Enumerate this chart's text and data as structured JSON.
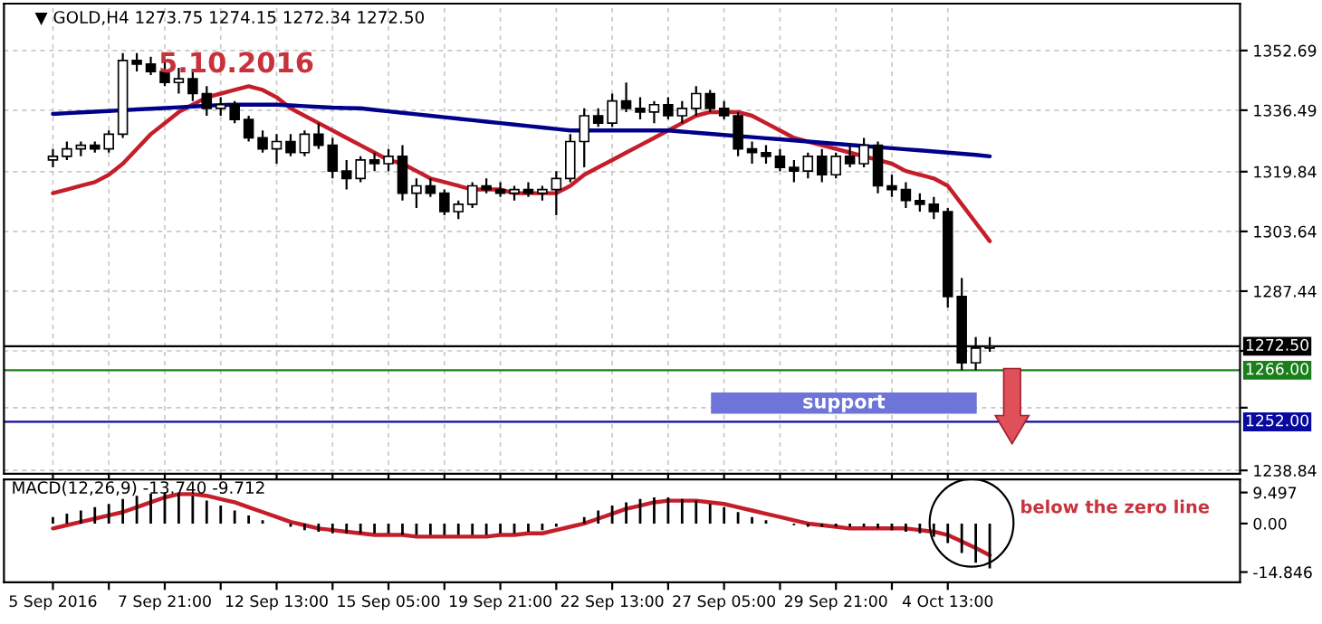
{
  "chart_data": [
    {
      "type": "candlestick",
      "title": "▼ GOLD,H4 1273.75 1274.15 1272.34 1272.50",
      "subtitle": "5.10.2016",
      "categories": [
        null,
        null,
        null,
        null,
        null,
        null,
        null,
        null,
        null,
        null,
        null,
        null,
        null,
        null,
        null,
        null,
        null,
        null,
        null,
        null,
        null,
        null,
        null,
        null,
        null,
        null,
        null,
        null,
        null,
        null,
        null,
        null,
        null,
        null,
        null,
        null,
        null,
        null,
        null,
        null,
        null,
        null,
        null,
        null,
        null,
        null,
        null,
        null,
        null,
        null,
        null,
        null,
        null,
        null,
        null,
        null,
        null,
        null,
        null,
        null,
        null,
        null,
        null,
        null,
        null,
        null,
        null,
        null
      ],
      "ohlc": [
        [
          1323,
          1326,
          1321,
          1324
        ],
        [
          1324,
          1328,
          1323,
          1326
        ],
        [
          1326,
          1328,
          1324,
          1327
        ],
        [
          1327,
          1328,
          1325,
          1326
        ],
        [
          1326,
          1331,
          1325,
          1330
        ],
        [
          1330,
          1352,
          1329,
          1350
        ],
        [
          1350,
          1352,
          1347,
          1349
        ],
        [
          1349,
          1351,
          1346,
          1347
        ],
        [
          1347,
          1350,
          1343,
          1344
        ],
        [
          1344,
          1348,
          1341,
          1345
        ],
        [
          1345,
          1347,
          1339,
          1341
        ],
        [
          1341,
          1343,
          1335,
          1337
        ],
        [
          1337,
          1340,
          1335,
          1338
        ],
        [
          1338,
          1339,
          1333,
          1334
        ],
        [
          1334,
          1335,
          1328,
          1329
        ],
        [
          1329,
          1331,
          1325,
          1326
        ],
        [
          1326,
          1330,
          1322,
          1328
        ],
        [
          1328,
          1330,
          1324,
          1325
        ],
        [
          1325,
          1331,
          1324,
          1330
        ],
        [
          1330,
          1333,
          1326,
          1327
        ],
        [
          1327,
          1329,
          1318,
          1320
        ],
        [
          1320,
          1323,
          1315,
          1318
        ],
        [
          1318,
          1324,
          1317,
          1323
        ],
        [
          1323,
          1325,
          1320,
          1322
        ],
        [
          1322,
          1326,
          1320,
          1324
        ],
        [
          1324,
          1327,
          1312,
          1314
        ],
        [
          1314,
          1318,
          1310,
          1316
        ],
        [
          1316,
          1318,
          1313,
          1314
        ],
        [
          1314,
          1315,
          1308,
          1309
        ],
        [
          1309,
          1312,
          1307,
          1311
        ],
        [
          1311,
          1317,
          1310,
          1316
        ],
        [
          1316,
          1318,
          1314,
          1315
        ],
        [
          1315,
          1317,
          1313,
          1314
        ],
        [
          1314,
          1316,
          1312,
          1315
        ],
        [
          1315,
          1317,
          1313,
          1314
        ],
        [
          1314,
          1316,
          1312,
          1315
        ],
        [
          1315,
          1320,
          1308,
          1318
        ],
        [
          1318,
          1330,
          1317,
          1328
        ],
        [
          1328,
          1337,
          1321,
          1335
        ],
        [
          1335,
          1337,
          1332,
          1333
        ],
        [
          1333,
          1341,
          1332,
          1339
        ],
        [
          1339,
          1344,
          1336,
          1337
        ],
        [
          1337,
          1340,
          1334,
          1336
        ],
        [
          1336,
          1339,
          1333,
          1338
        ],
        [
          1338,
          1340,
          1334,
          1335
        ],
        [
          1335,
          1339,
          1333,
          1337
        ],
        [
          1337,
          1343,
          1335,
          1341
        ],
        [
          1341,
          1342,
          1336,
          1337
        ],
        [
          1337,
          1339,
          1334,
          1335
        ],
        [
          1335,
          1336,
          1324,
          1326
        ],
        [
          1326,
          1328,
          1322,
          1325
        ],
        [
          1325,
          1327,
          1322,
          1324
        ],
        [
          1324,
          1326,
          1320,
          1321
        ],
        [
          1321,
          1323,
          1317,
          1320
        ],
        [
          1320,
          1325,
          1318,
          1324
        ],
        [
          1324,
          1326,
          1317,
          1319
        ],
        [
          1319,
          1325,
          1318,
          1324
        ],
        [
          1324,
          1327,
          1321,
          1322
        ],
        [
          1322,
          1329,
          1321,
          1327
        ],
        [
          1327,
          1328,
          1314,
          1316
        ],
        [
          1316,
          1319,
          1313,
          1315
        ],
        [
          1315,
          1317,
          1310,
          1312
        ],
        [
          1312,
          1314,
          1309,
          1311
        ],
        [
          1311,
          1313,
          1307,
          1309
        ],
        [
          1309,
          1310,
          1283,
          1286
        ],
        [
          1286,
          1291,
          1266,
          1268
        ],
        [
          1268,
          1275,
          1266,
          1272
        ],
        [
          1272,
          1275,
          1271,
          1272.5
        ]
      ],
      "series": [
        {
          "type": "line",
          "color": "#c41e2a",
          "values": [
            1314,
            1315,
            1316,
            1317,
            1319,
            1322,
            1326,
            1330,
            1333,
            1336,
            1338,
            1340,
            1341,
            1342,
            1343,
            1342,
            1340,
            1337,
            1335,
            1333,
            1331,
            1329,
            1327,
            1325,
            1323,
            1322,
            1320,
            1318,
            1317,
            1316,
            1315,
            1315,
            1315,
            1314,
            1314,
            1314,
            1314,
            1316,
            1319,
            1321,
            1323,
            1325,
            1327,
            1329,
            1331,
            1333,
            1335,
            1336,
            1336,
            1336,
            1335,
            1333,
            1331,
            1329,
            1328,
            1327,
            1326,
            1325,
            1324,
            1323,
            1322,
            1320,
            1319,
            1318,
            1316,
            1311,
            1306,
            1301
          ]
        },
        {
          "type": "line",
          "color": "#00008b",
          "values": [
            1335.5,
            1335.7,
            1335.9,
            1336.1,
            1336.3,
            1336.5,
            1336.7,
            1336.9,
            1337.1,
            1337.3,
            1337.5,
            1337.7,
            1337.9,
            1338,
            1338,
            1338,
            1338,
            1337.8,
            1337.6,
            1337.4,
            1337.2,
            1337.1,
            1337,
            1336.6,
            1336.2,
            1335.8,
            1335.4,
            1335,
            1334.6,
            1334.2,
            1333.8,
            1333.4,
            1333,
            1332.6,
            1332.2,
            1331.8,
            1331.4,
            1331,
            1331,
            1331,
            1331,
            1331,
            1331,
            1331,
            1331,
            1330.7,
            1330.4,
            1330.1,
            1329.8,
            1329.5,
            1329.2,
            1328.9,
            1328.6,
            1328.3,
            1328,
            1327.7,
            1327.4,
            1327.1,
            1326.8,
            1326.5,
            1326.2,
            1325.9,
            1325.6,
            1325.3,
            1325,
            1324.7,
            1324.4,
            1324
          ]
        }
      ],
      "ylim": [
        1237.9,
        1365.4
      ],
      "yticks": [
        1352.69,
        1336.49,
        1319.84,
        1303.64,
        1287.44,
        {
          "value": 1271.24,
          "label": null
        },
        {
          "value": 1255.84,
          "label": null
        },
        1238.84
      ],
      "grid": true,
      "tick_labels": "y",
      "ref_lines": [
        {
          "axis": "y",
          "value": 1272.5,
          "label": "1272.50",
          "color": "#000000"
        },
        {
          "axis": "y",
          "value": 1266,
          "label": "1266.00",
          "color": "#1a7f1a"
        },
        {
          "axis": "y",
          "value": 1252,
          "label": "1252.00",
          "color": "#0a0aa0"
        }
      ],
      "annotations": [
        "support"
      ]
    },
    {
      "type": "bar",
      "title": "MACD(12,26,9) -13.740 -9.712",
      "categories": [
        "5 Sep 2016",
        null,
        null,
        null,
        null,
        null,
        null,
        null,
        "7 Sep 21:00",
        null,
        null,
        null,
        null,
        null,
        null,
        null,
        "12 Sep 13:00",
        null,
        null,
        null,
        null,
        null,
        null,
        null,
        "15 Sep 05:00",
        null,
        null,
        null,
        null,
        null,
        null,
        null,
        "19 Sep 21:00",
        null,
        null,
        null,
        null,
        null,
        null,
        null,
        "22 Sep 13:00",
        null,
        null,
        null,
        null,
        null,
        null,
        null,
        "27 Sep 05:00",
        null,
        null,
        null,
        null,
        null,
        null,
        null,
        "29 Sep 21:00",
        null,
        null,
        null,
        null,
        null,
        null,
        null,
        "4 Oct 13:00",
        null,
        null,
        null
      ],
      "series": [
        {
          "type": "bar",
          "color": "#000000",
          "values": [
            2,
            3,
            4,
            5,
            6,
            7.5,
            8.5,
            9.2,
            9.5,
            9.3,
            8.5,
            7,
            5.5,
            4,
            2.5,
            1,
            0,
            -1,
            -2,
            -2.5,
            -3,
            -3,
            -3,
            -3,
            -3,
            -3.5,
            -3.5,
            -3.5,
            -3.5,
            -3.5,
            -3.5,
            -3.5,
            -3,
            -3,
            -2.5,
            -2,
            -1,
            0,
            2,
            4,
            5.5,
            6.5,
            7.5,
            8,
            8,
            7.5,
            7,
            6,
            5,
            3.5,
            2,
            1,
            0,
            -0.5,
            -1,
            -1,
            -1,
            -1,
            -1,
            -1.5,
            -2,
            -2.5,
            -3,
            -4,
            -6,
            -9,
            -12,
            -13.7
          ]
        },
        {
          "type": "line",
          "color": "#c41e2a",
          "values": [
            -1.5,
            -0.5,
            0.5,
            1.5,
            2.5,
            3.5,
            5,
            6.5,
            8,
            9,
            9,
            8.5,
            7.5,
            6.5,
            5,
            3.5,
            2,
            0.5,
            -0.5,
            -1.5,
            -2,
            -2.5,
            -3,
            -3.5,
            -3.5,
            -3.5,
            -4,
            -4,
            -4,
            -4,
            -4,
            -4,
            -3.5,
            -3.5,
            -3,
            -3,
            -2,
            -1,
            0,
            1.5,
            3,
            4.5,
            5.5,
            6.5,
            7,
            7,
            7,
            6.5,
            6,
            5,
            4,
            3,
            2,
            1,
            0,
            -0.5,
            -1,
            -1.5,
            -1.5,
            -1.5,
            -1.5,
            -1.5,
            -2,
            -2.5,
            -3.5,
            -5.5,
            -7.5,
            -9.7
          ]
        }
      ],
      "ylim": [
        -18,
        13.5
      ],
      "yticks": [
        9.497,
        {
          "value": 0,
          "label": "0.00"
        },
        -14.846
      ],
      "annotations": [
        "below the zero line"
      ]
    }
  ]
}
